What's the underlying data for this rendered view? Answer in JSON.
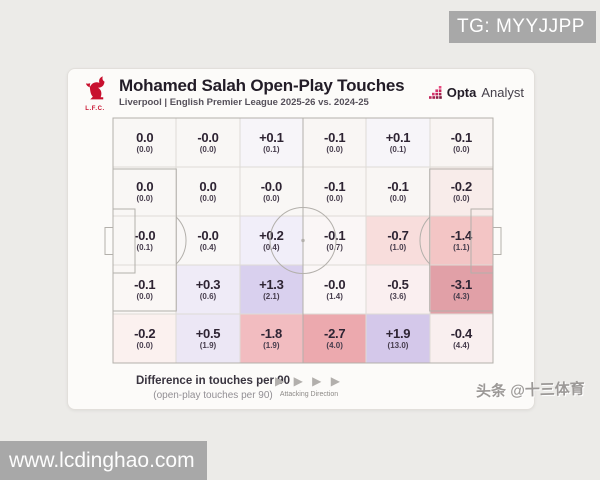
{
  "page": {
    "tg_badge": "TG: MYYJJPP",
    "url_watermark": "www.lcdinghao.com",
    "social_watermark": "头条 @十三体育"
  },
  "header": {
    "title": "Mohamed Salah Open-Play Touches",
    "subtitle": "Liverpool | English Premier League 2025-26 vs. 2024-25",
    "club_initials": "L.F.C.",
    "brand_bold": "Opta",
    "brand_regular": "Analyst"
  },
  "legend": {
    "label": "Difference in touches per 90",
    "sublabel": "(open-play touches per 90)",
    "direction_arrows": "▶ ▶ ▶ ▶",
    "direction_label": "Attacking Direction"
  },
  "chart_data": {
    "type": "heatmap",
    "title": "Mohamed Salah Open-Play Touches",
    "subtitle": "Liverpool | English Premier League 2025-26 vs. 2024-25",
    "rows": 5,
    "cols": 6,
    "metric": "Difference in touches per 90",
    "metric_note": "open-play touches per 90 shown in parentheses",
    "attacking_direction": "left-to-right",
    "positive_color": "#d4c8ea",
    "negative_color": "#e1a0a7",
    "neutral_color": "#f9f7f5",
    "cells": [
      {
        "row": 1,
        "col": 1,
        "diff": "0.0",
        "per90": "(0.0)",
        "bg": "#f9f7f5"
      },
      {
        "row": 1,
        "col": 2,
        "diff": "-0.0",
        "per90": "(0.0)",
        "bg": "#f9f7f5"
      },
      {
        "row": 1,
        "col": 3,
        "diff": "+0.1",
        "per90": "(0.1)",
        "bg": "#f7f5f9"
      },
      {
        "row": 1,
        "col": 4,
        "diff": "-0.1",
        "per90": "(0.0)",
        "bg": "#f9f6f4"
      },
      {
        "row": 1,
        "col": 5,
        "diff": "+0.1",
        "per90": "(0.1)",
        "bg": "#f7f5f9"
      },
      {
        "row": 1,
        "col": 6,
        "diff": "-0.1",
        "per90": "(0.0)",
        "bg": "#f9f5f3"
      },
      {
        "row": 2,
        "col": 1,
        "diff": "0.0",
        "per90": "(0.0)",
        "bg": "#f9f7f5"
      },
      {
        "row": 2,
        "col": 2,
        "diff": "0.0",
        "per90": "(0.0)",
        "bg": "#f9f7f5"
      },
      {
        "row": 2,
        "col": 3,
        "diff": "-0.0",
        "per90": "(0.0)",
        "bg": "#f9f7f5"
      },
      {
        "row": 2,
        "col": 4,
        "diff": "-0.1",
        "per90": "(0.0)",
        "bg": "#f9f6f4"
      },
      {
        "row": 2,
        "col": 5,
        "diff": "-0.1",
        "per90": "(0.0)",
        "bg": "#f9f6f4"
      },
      {
        "row": 2,
        "col": 6,
        "diff": "-0.2",
        "per90": "(0.0)",
        "bg": "#f8ecea"
      },
      {
        "row": 3,
        "col": 1,
        "diff": "-0.0",
        "per90": "(0.1)",
        "bg": "#f9f7f5"
      },
      {
        "row": 3,
        "col": 2,
        "diff": "-0.0",
        "per90": "(0.4)",
        "bg": "#f9f7f6"
      },
      {
        "row": 3,
        "col": 3,
        "diff": "+0.2",
        "per90": "(0.4)",
        "bg": "#f1eef9"
      },
      {
        "row": 3,
        "col": 4,
        "diff": "-0.1",
        "per90": "(0.7)",
        "bg": "#faf6f6"
      },
      {
        "row": 3,
        "col": 5,
        "diff": "-0.7",
        "per90": "(1.0)",
        "bg": "#f8dddc"
      },
      {
        "row": 3,
        "col": 6,
        "diff": "-1.4",
        "per90": "(1.1)",
        "bg": "#f3c5c5"
      },
      {
        "row": 4,
        "col": 1,
        "diff": "-0.1",
        "per90": "(0.0)",
        "bg": "#faf7f5"
      },
      {
        "row": 4,
        "col": 2,
        "diff": "+0.3",
        "per90": "(0.6)",
        "bg": "#efebf7"
      },
      {
        "row": 4,
        "col": 3,
        "diff": "+1.3",
        "per90": "(2.1)",
        "bg": "#d9d0ee"
      },
      {
        "row": 4,
        "col": 4,
        "diff": "-0.0",
        "per90": "(1.4)",
        "bg": "#fbf7f7"
      },
      {
        "row": 4,
        "col": 5,
        "diff": "-0.5",
        "per90": "(3.6)",
        "bg": "#faeff0"
      },
      {
        "row": 4,
        "col": 6,
        "diff": "-3.1",
        "per90": "(4.3)",
        "bg": "#e1a0a7"
      },
      {
        "row": 5,
        "col": 1,
        "diff": "-0.2",
        "per90": "(0.0)",
        "bg": "#fbf1ef"
      },
      {
        "row": 5,
        "col": 2,
        "diff": "+0.5",
        "per90": "(1.9)",
        "bg": "#ece7f5"
      },
      {
        "row": 5,
        "col": 3,
        "diff": "-1.8",
        "per90": "(1.9)",
        "bg": "#f2bcc0"
      },
      {
        "row": 5,
        "col": 4,
        "diff": "-2.7",
        "per90": "(4.0)",
        "bg": "#eca9ae"
      },
      {
        "row": 5,
        "col": 5,
        "diff": "+1.9",
        "per90": "(13.0)",
        "bg": "#d4c8ea"
      },
      {
        "row": 5,
        "col": 6,
        "diff": "-0.4",
        "per90": "(4.4)",
        "bg": "#f9efef"
      }
    ]
  }
}
